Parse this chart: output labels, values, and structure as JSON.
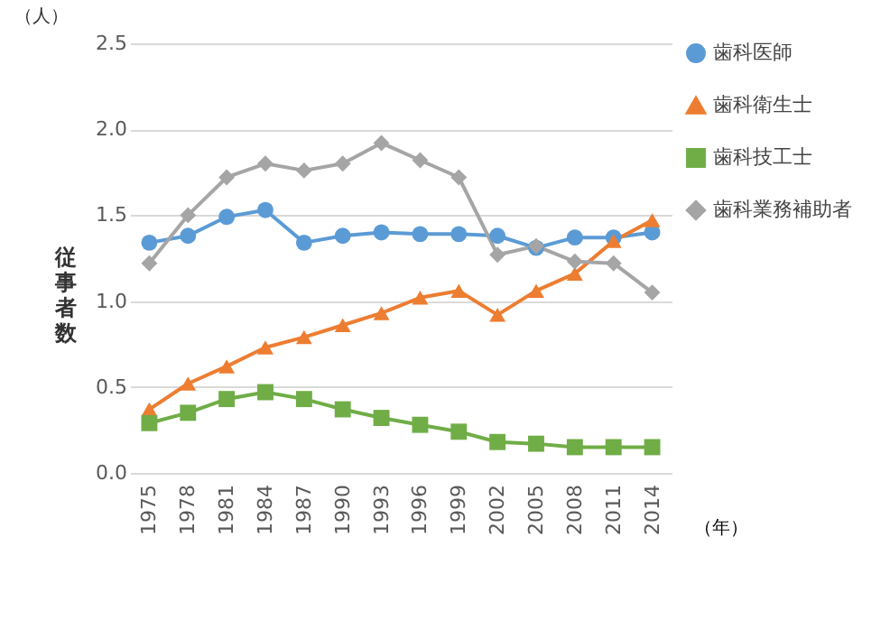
{
  "chart_data": {
    "type": "line",
    "ylabel": "従事者数",
    "xlabel": "（年）",
    "annotations": [
      "（人）"
    ],
    "categories": [
      "1975",
      "1978",
      "1981",
      "1984",
      "1987",
      "1990",
      "1993",
      "1996",
      "1999",
      "2002",
      "2005",
      "2008",
      "2011",
      "2014"
    ],
    "ylim": [
      0,
      2.5
    ],
    "yticks": [
      {
        "value": 0,
        "label": "0.0"
      },
      {
        "value": 0.5,
        "label": "0.5"
      },
      {
        "value": 1,
        "label": "1.0"
      },
      {
        "value": 1.5,
        "label": "1.5"
      },
      {
        "value": 2,
        "label": "2.0"
      },
      {
        "value": 2.5,
        "label": "2.5"
      }
    ],
    "grid": "y",
    "legend": "right",
    "series": [
      {
        "name": "歯科医師",
        "color": "#5b9bd5",
        "marker": "circle",
        "values": [
          1.34,
          1.38,
          1.49,
          1.53,
          1.34,
          1.38,
          1.4,
          1.39,
          1.39,
          1.38,
          1.31,
          1.37,
          1.37,
          1.4
        ]
      },
      {
        "name": "歯科衛生士",
        "color": "#ed7d31",
        "marker": "triangle",
        "values": [
          0.37,
          0.52,
          0.62,
          0.73,
          0.79,
          0.86,
          0.93,
          1.02,
          1.06,
          0.92,
          1.06,
          1.16,
          1.35,
          1.47
        ]
      },
      {
        "name": "歯科技工士",
        "color": "#70ad47",
        "marker": "square",
        "values": [
          0.29,
          0.35,
          0.43,
          0.47,
          0.43,
          0.37,
          0.32,
          0.28,
          0.24,
          0.18,
          0.17,
          0.15,
          0.15,
          0.15
        ]
      },
      {
        "name": "歯科業務補助者",
        "color": "#a5a5a5",
        "marker": "diamond",
        "values": [
          1.22,
          1.5,
          1.72,
          1.8,
          1.76,
          1.8,
          1.92,
          1.82,
          1.72,
          1.27,
          1.32,
          1.23,
          1.22,
          1.05
        ]
      }
    ]
  }
}
